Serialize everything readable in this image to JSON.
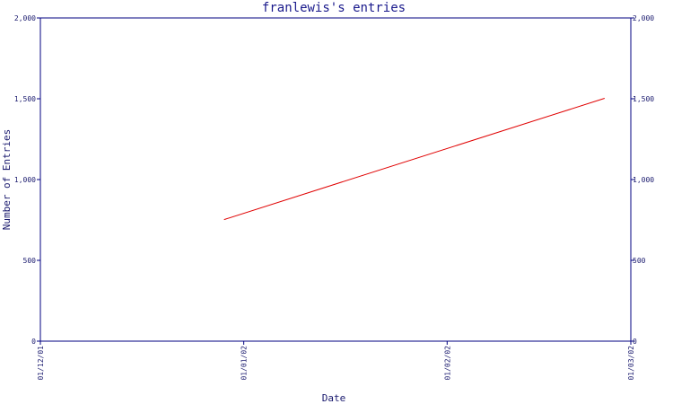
{
  "chart_data": {
    "type": "line",
    "title": "franlewis's entries",
    "xlabel": "Date",
    "ylabel": "Number of Entries",
    "x_tick_labels": [
      "01/12/01",
      "01/01/02",
      "01/02/02",
      "01/03/02"
    ],
    "y_tick_labels": [
      "0",
      "500",
      "1,000",
      "1,500",
      "2,000"
    ],
    "y_ticks": [
      0,
      500,
      1000,
      1500,
      2000
    ],
    "ylim": [
      0,
      2000
    ],
    "xlim": [
      "2001-12-01",
      "2002-03-01"
    ],
    "grid": false,
    "series": [
      {
        "x": [
          "2001-12-29",
          "2002-02-25"
        ],
        "y": [
          752,
          1503
        ]
      }
    ]
  },
  "colors": {
    "axis": "#000080",
    "series": "#e00000",
    "text": "#1a1a6e"
  }
}
